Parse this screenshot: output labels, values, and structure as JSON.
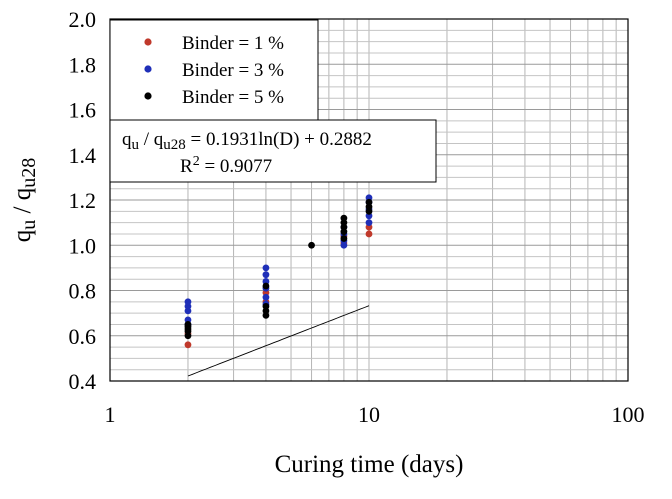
{
  "chart_data": {
    "type": "scatter",
    "title": "",
    "xlabel": "Curing time (days)",
    "ylabel_main": "q",
    "ylabel_sub1": "u",
    "ylabel_sep": " / q",
    "ylabel_sub2": "u28",
    "x_scale": "log",
    "xlim": [
      1,
      100
    ],
    "ylim": [
      0.4,
      2.0
    ],
    "x_ticks": [
      1,
      10,
      100
    ],
    "x_tick_labels": [
      "1",
      "10",
      "100"
    ],
    "y_ticks": [
      0.4,
      0.6,
      0.8,
      1.0,
      1.2,
      1.4,
      1.6,
      1.8,
      2.0
    ],
    "y_tick_labels": [
      "0.4",
      "0.6",
      "0.8",
      "1.0",
      "1.2",
      "1.4",
      "1.6",
      "1.8",
      "2.0"
    ],
    "grid": true,
    "legend_position": "top-left",
    "series": [
      {
        "name": "Binder = 1 %",
        "color": "#c0392b",
        "points": [
          [
            2,
            0.56
          ],
          [
            2,
            0.61
          ],
          [
            4,
            0.75
          ],
          [
            4,
            0.79
          ],
          [
            8,
            1.01
          ],
          [
            8,
            1.04
          ],
          [
            10,
            1.05
          ],
          [
            10,
            1.08
          ]
        ]
      },
      {
        "name": "Binder = 3 %",
        "color": "#1f2fb8",
        "points": [
          [
            2,
            0.65
          ],
          [
            2,
            0.67
          ],
          [
            2,
            0.71
          ],
          [
            2,
            0.73
          ],
          [
            2,
            0.75
          ],
          [
            4,
            0.74
          ],
          [
            4,
            0.77
          ],
          [
            4,
            0.81
          ],
          [
            4,
            0.84
          ],
          [
            4,
            0.87
          ],
          [
            4,
            0.9
          ],
          [
            8,
            1.0
          ],
          [
            8,
            1.02
          ],
          [
            8,
            1.05
          ],
          [
            8,
            1.08
          ],
          [
            10,
            1.1
          ],
          [
            10,
            1.13
          ],
          [
            10,
            1.16
          ],
          [
            10,
            1.19
          ],
          [
            10,
            1.21
          ]
        ]
      },
      {
        "name": "Binder = 5 %",
        "color": "#000000",
        "points": [
          [
            2,
            0.6
          ],
          [
            2,
            0.62
          ],
          [
            2,
            0.63
          ],
          [
            2,
            0.64
          ],
          [
            2,
            0.65
          ],
          [
            4,
            0.69
          ],
          [
            4,
            0.71
          ],
          [
            4,
            0.73
          ],
          [
            4,
            0.82
          ],
          [
            6,
            1.0
          ],
          [
            8,
            1.03
          ],
          [
            8,
            1.06
          ],
          [
            8,
            1.08
          ],
          [
            8,
            1.1
          ],
          [
            8,
            1.12
          ],
          [
            10,
            1.15
          ],
          [
            10,
            1.17
          ],
          [
            10,
            1.19
          ]
        ]
      }
    ],
    "trendline": {
      "a": 0.1931,
      "b": 0.2882,
      "x_from": 2,
      "x_to": 10
    },
    "equation": {
      "lhs_main": "q",
      "lhs_sub1": "u",
      "lhs_sep": " / q",
      "lhs_sub2": "u28",
      "rhs": " = 0.1931ln(D) + 0.2882",
      "r2_label": "R",
      "r2_sup": "2",
      "r2_value": " = 0.9077"
    }
  }
}
